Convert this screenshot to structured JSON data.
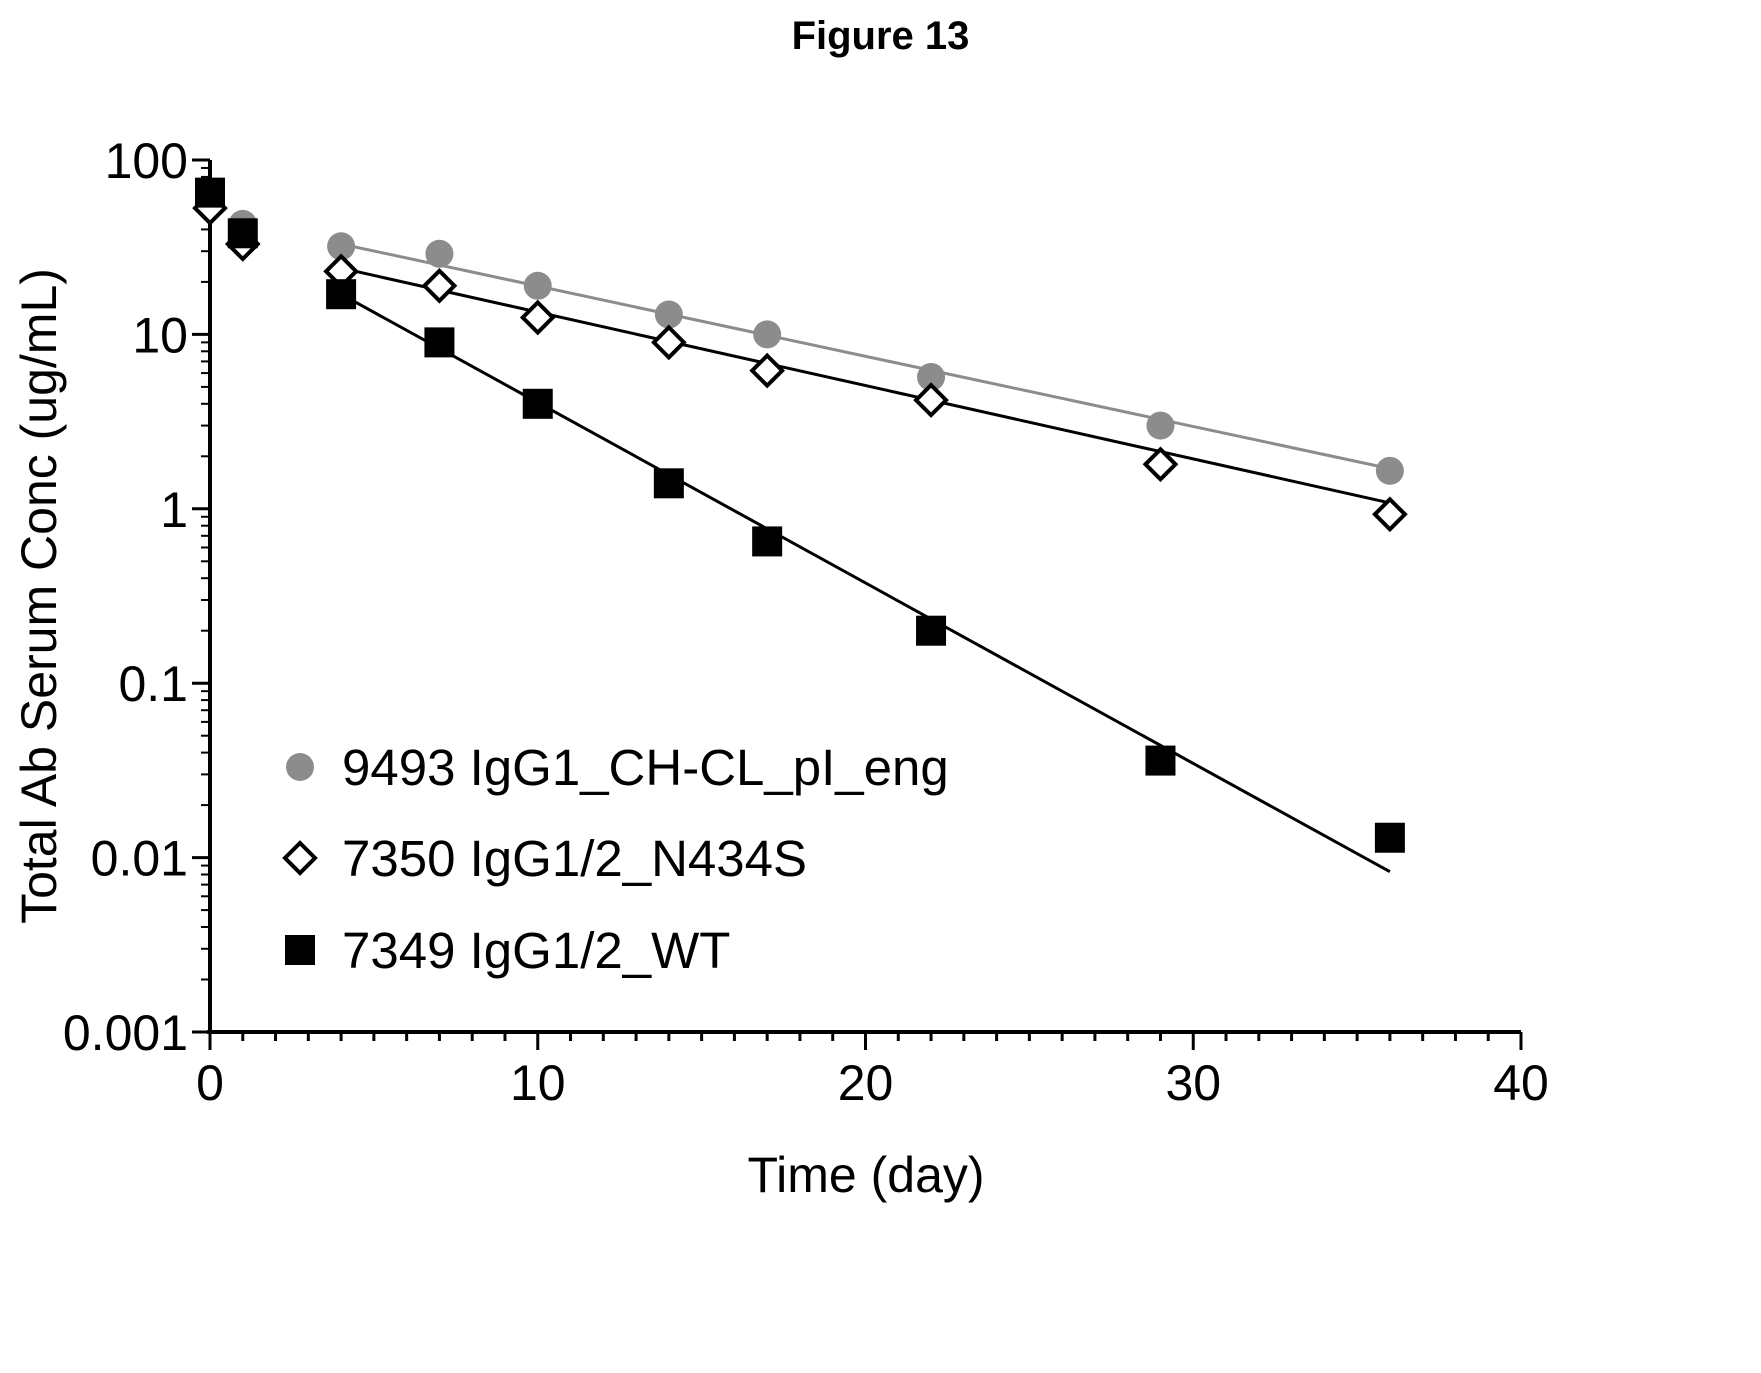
{
  "figure_title": "Figure 13",
  "chart_data": {
    "type": "scatter",
    "xlabel": "Time (day)",
    "ylabel": "Total Ab Serum Conc (ug/mL)",
    "xlim": [
      0,
      40
    ],
    "ylim": [
      0.001,
      100
    ],
    "yscale": "log",
    "xticks": [
      0,
      10,
      20,
      30,
      40
    ],
    "xtick_labels": [
      "0",
      "10",
      "20",
      "30",
      "40"
    ],
    "yticks": [
      0.001,
      0.01,
      0.1,
      1,
      10,
      100
    ],
    "ytick_labels": [
      "0.001",
      "0.01",
      "0.1",
      "1",
      "10",
      "100"
    ],
    "grid": false,
    "legend_position": "bottom-left",
    "series": [
      {
        "name": "9493 IgG1_CH-CL_pI_eng",
        "marker": "circle",
        "color": "#8c8c8c",
        "x": [
          0,
          1,
          4,
          7,
          10,
          14,
          17,
          22,
          29,
          36
        ],
        "y": [
          65,
          43,
          32,
          29,
          19,
          13,
          10,
          5.7,
          3.0,
          1.65
        ],
        "fit": {
          "x": [
            4,
            36
          ],
          "y": [
            33,
            1.7
          ]
        }
      },
      {
        "name": "7350 IgG1/2_N434S",
        "marker": "diamond-open",
        "color": "#000000",
        "x": [
          0,
          1,
          4,
          7,
          10,
          14,
          17,
          22,
          29,
          36
        ],
        "y": [
          53,
          33,
          23,
          19,
          12.5,
          9.0,
          6.2,
          4.2,
          1.8,
          0.93
        ],
        "fit": {
          "x": [
            4,
            36
          ],
          "y": [
            24,
            1.08
          ]
        }
      },
      {
        "name": "7349 IgG1/2_WT",
        "marker": "square",
        "color": "#000000",
        "x": [
          0,
          1,
          4,
          7,
          10,
          14,
          17,
          22,
          29,
          36
        ],
        "y": [
          65,
          38,
          17,
          9.0,
          4.0,
          1.4,
          0.65,
          0.2,
          0.036,
          0.013
        ],
        "fit": {
          "x": [
            4,
            36
          ],
          "y": [
            17,
            0.0083
          ]
        }
      }
    ]
  }
}
